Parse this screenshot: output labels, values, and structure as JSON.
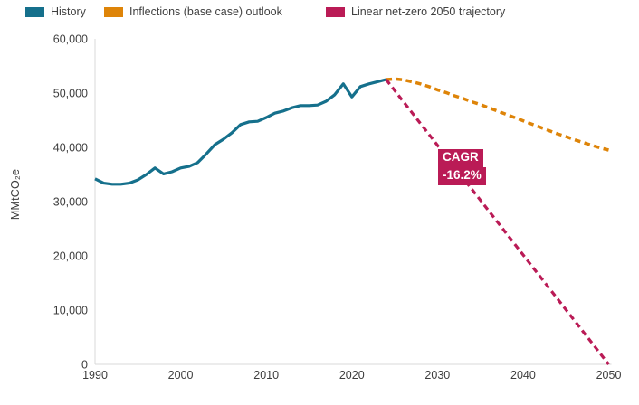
{
  "legend": [
    {
      "label": "History",
      "color": "#15708c"
    },
    {
      "label": "Inflections (base case) outlook",
      "color": "#de8408"
    },
    {
      "label": "Linear net-zero 2050 trajectory",
      "color": "#ba1b56"
    }
  ],
  "y_axis_title": "MMtCO₂e",
  "annotation": {
    "line1": "CAGR",
    "line2": "-16.2%"
  },
  "chart_data": {
    "type": "line",
    "title": "",
    "xlabel": "",
    "ylabel": "MMtCO₂e",
    "xlim": [
      1990,
      2050
    ],
    "ylim": [
      0,
      60000
    ],
    "grid": false,
    "legend_position": "top-left",
    "x_ticks": [
      1990,
      2000,
      2010,
      2020,
      2030,
      2040,
      2050
    ],
    "x_tick_labels": [
      "1990",
      "2000",
      "2010",
      "2020",
      "2030",
      "2040",
      "2050"
    ],
    "y_ticks": [
      0,
      10000,
      20000,
      30000,
      40000,
      50000,
      60000
    ],
    "y_tick_labels": [
      "0",
      "10,000",
      "20,000",
      "30,000",
      "40,000",
      "50,000",
      "60,000"
    ],
    "axis_color": "#d8d8d8",
    "series": [
      {
        "name": "History",
        "color": "#15708c",
        "style": "solid",
        "stroke_width": 3.2,
        "points": [
          [
            1990,
            34200
          ],
          [
            1991,
            33400
          ],
          [
            1992,
            33200
          ],
          [
            1993,
            33200
          ],
          [
            1994,
            33400
          ],
          [
            1995,
            34000
          ],
          [
            1996,
            35000
          ],
          [
            1997,
            36200
          ],
          [
            1998,
            35100
          ],
          [
            1999,
            35500
          ],
          [
            2000,
            36200
          ],
          [
            2001,
            36500
          ],
          [
            2002,
            37200
          ],
          [
            2003,
            38800
          ],
          [
            2004,
            40500
          ],
          [
            2005,
            41500
          ],
          [
            2006,
            42700
          ],
          [
            2007,
            44200
          ],
          [
            2008,
            44700
          ],
          [
            2009,
            44800
          ],
          [
            2010,
            45500
          ],
          [
            2011,
            46300
          ],
          [
            2012,
            46700
          ],
          [
            2013,
            47300
          ],
          [
            2014,
            47700
          ],
          [
            2015,
            47700
          ],
          [
            2016,
            47800
          ],
          [
            2017,
            48500
          ],
          [
            2018,
            49700
          ],
          [
            2019,
            51700
          ],
          [
            2020,
            49300
          ],
          [
            2021,
            51200
          ],
          [
            2022,
            51700
          ],
          [
            2023,
            52100
          ],
          [
            2024,
            52500
          ]
        ]
      },
      {
        "name": "Inflections (base case) outlook",
        "color": "#de8408",
        "style": "dashed",
        "stroke_width": 3.5,
        "points": [
          [
            2024,
            52500
          ],
          [
            2025,
            52600
          ],
          [
            2026,
            52450
          ],
          [
            2027,
            52100
          ],
          [
            2028,
            51700
          ],
          [
            2029,
            51200
          ],
          [
            2030,
            50600
          ],
          [
            2031,
            50100
          ],
          [
            2032,
            49500
          ],
          [
            2033,
            49000
          ],
          [
            2034,
            48400
          ],
          [
            2035,
            47900
          ],
          [
            2036,
            47300
          ],
          [
            2037,
            46700
          ],
          [
            2038,
            46100
          ],
          [
            2039,
            45500
          ],
          [
            2040,
            44900
          ],
          [
            2041,
            44300
          ],
          [
            2042,
            43700
          ],
          [
            2043,
            43100
          ],
          [
            2044,
            42500
          ],
          [
            2045,
            42000
          ],
          [
            2046,
            41400
          ],
          [
            2047,
            40900
          ],
          [
            2048,
            40400
          ],
          [
            2049,
            39900
          ],
          [
            2050,
            39500
          ]
        ]
      },
      {
        "name": "Linear net-zero 2050 trajectory",
        "color": "#ba1b56",
        "style": "dashed",
        "stroke_width": 3.2,
        "points": [
          [
            2024,
            52500
          ],
          [
            2050,
            0
          ]
        ]
      }
    ],
    "annotation": {
      "text": [
        "CAGR",
        "-16.2%"
      ],
      "anchor_year": 2030,
      "anchor_value": 38500
    }
  }
}
